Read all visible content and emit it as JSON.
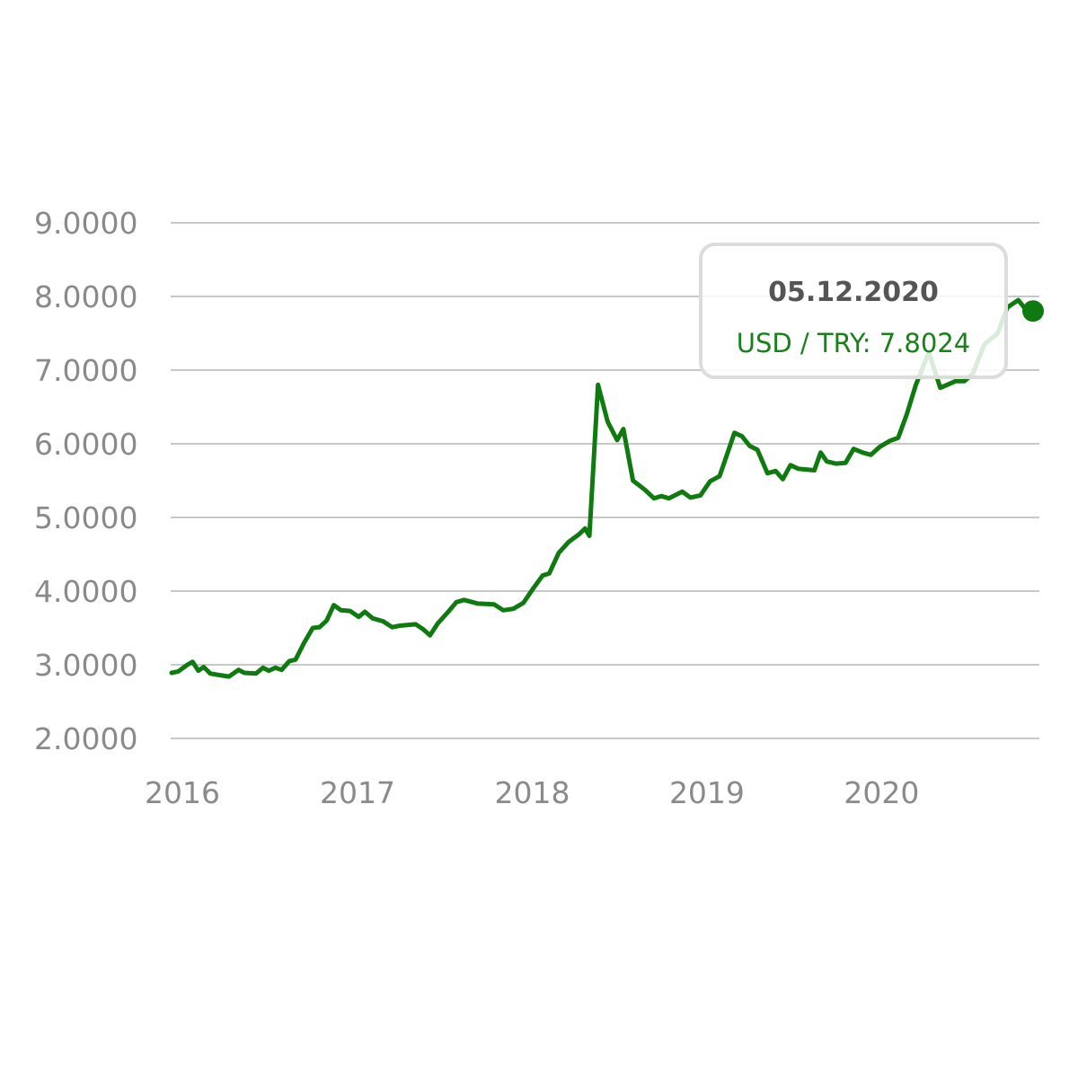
{
  "chart_data": {
    "type": "line",
    "title": "",
    "xlabel": "",
    "ylabel": "",
    "ylim": [
      2.0,
      9.0
    ],
    "xlim": [
      "2016-01-01",
      "2020-12-31"
    ],
    "yticks": [
      "2.0000",
      "3.0000",
      "4.0000",
      "5.0000",
      "6.0000",
      "7.0000",
      "8.0000",
      "9.0000"
    ],
    "xticks": [
      {
        "date": "2016-01-01",
        "label": "2016"
      },
      {
        "date": "2017-01-01",
        "label": "2017"
      },
      {
        "date": "2018-01-01",
        "label": "2018"
      },
      {
        "date": "2019-01-01",
        "label": "2019"
      },
      {
        "date": "2020-01-01",
        "label": "2020"
      }
    ],
    "grid": true,
    "color": "#0f7a0f",
    "series": [
      {
        "name": "USD / TRY",
        "points": [
          [
            "2016-01-01",
            2.89
          ],
          [
            "2016-01-15",
            2.91
          ],
          [
            "2016-02-03",
            3.0
          ],
          [
            "2016-02-14",
            3.04
          ],
          [
            "2016-02-26",
            2.92
          ],
          [
            "2016-03-08",
            2.97
          ],
          [
            "2016-03-22",
            2.88
          ],
          [
            "2016-04-10",
            2.86
          ],
          [
            "2016-04-30",
            2.84
          ],
          [
            "2016-05-20",
            2.93
          ],
          [
            "2016-06-01",
            2.89
          ],
          [
            "2016-06-25",
            2.88
          ],
          [
            "2016-07-10",
            2.96
          ],
          [
            "2016-07-22",
            2.92
          ],
          [
            "2016-08-05",
            2.96
          ],
          [
            "2016-08-18",
            2.93
          ],
          [
            "2016-09-03",
            3.05
          ],
          [
            "2016-09-16",
            3.07
          ],
          [
            "2016-10-04",
            3.3
          ],
          [
            "2016-10-22",
            3.5
          ],
          [
            "2016-11-05",
            3.51
          ],
          [
            "2016-11-20",
            3.6
          ],
          [
            "2016-12-05",
            3.81
          ],
          [
            "2016-12-20",
            3.74
          ],
          [
            "2017-01-08",
            3.73
          ],
          [
            "2017-01-26",
            3.65
          ],
          [
            "2017-02-08",
            3.72
          ],
          [
            "2017-02-24",
            3.63
          ],
          [
            "2017-03-18",
            3.59
          ],
          [
            "2017-04-06",
            3.51
          ],
          [
            "2017-04-22",
            3.53
          ],
          [
            "2017-05-25",
            3.55
          ],
          [
            "2017-06-10",
            3.48
          ],
          [
            "2017-06-24",
            3.4
          ],
          [
            "2017-07-10",
            3.56
          ],
          [
            "2017-08-01",
            3.72
          ],
          [
            "2017-08-18",
            3.85
          ],
          [
            "2017-09-03",
            3.88
          ],
          [
            "2017-10-02",
            3.83
          ],
          [
            "2017-11-05",
            3.82
          ],
          [
            "2017-11-24",
            3.74
          ],
          [
            "2017-12-15",
            3.76
          ],
          [
            "2018-01-05",
            3.84
          ],
          [
            "2018-01-26",
            4.04
          ],
          [
            "2018-02-14",
            4.21
          ],
          [
            "2018-02-28",
            4.24
          ],
          [
            "2018-03-20",
            4.52
          ],
          [
            "2018-04-10",
            4.67
          ],
          [
            "2018-05-01",
            4.77
          ],
          [
            "2018-05-14",
            4.85
          ],
          [
            "2018-05-23",
            4.75
          ],
          [
            "2018-06-10",
            6.8
          ],
          [
            "2018-06-30",
            6.3
          ],
          [
            "2018-07-20",
            6.05
          ],
          [
            "2018-08-02",
            6.2
          ],
          [
            "2018-08-22",
            5.5
          ],
          [
            "2018-09-15",
            5.38
          ],
          [
            "2018-10-05",
            5.26
          ],
          [
            "2018-10-20",
            5.29
          ],
          [
            "2018-11-05",
            5.26
          ],
          [
            "2018-12-03",
            5.35
          ],
          [
            "2018-12-20",
            5.27
          ],
          [
            "2019-01-10",
            5.3
          ],
          [
            "2019-01-30",
            5.49
          ],
          [
            "2019-02-19",
            5.56
          ],
          [
            "2019-03-22",
            6.15
          ],
          [
            "2019-04-07",
            6.1
          ],
          [
            "2019-04-23",
            5.97
          ],
          [
            "2019-05-09",
            5.92
          ],
          [
            "2019-05-30",
            5.6
          ],
          [
            "2019-06-16",
            5.63
          ],
          [
            "2019-07-01",
            5.52
          ],
          [
            "2019-07-17",
            5.71
          ],
          [
            "2019-08-03",
            5.66
          ],
          [
            "2019-09-05",
            5.64
          ],
          [
            "2019-09-18",
            5.88
          ],
          [
            "2019-10-01",
            5.76
          ],
          [
            "2019-10-20",
            5.73
          ],
          [
            "2019-11-09",
            5.74
          ],
          [
            "2019-11-26",
            5.93
          ],
          [
            "2019-12-15",
            5.88
          ],
          [
            "2020-01-01",
            5.85
          ],
          [
            "2020-01-20",
            5.96
          ],
          [
            "2020-02-10",
            6.04
          ],
          [
            "2020-02-27",
            6.08
          ],
          [
            "2020-03-16",
            6.4
          ],
          [
            "2020-04-04",
            6.8
          ],
          [
            "2020-05-01",
            7.24
          ],
          [
            "2020-05-25",
            6.76
          ],
          [
            "2020-06-26",
            6.85
          ],
          [
            "2020-07-14",
            6.85
          ],
          [
            "2020-08-01",
            6.95
          ],
          [
            "2020-08-25",
            7.35
          ],
          [
            "2020-09-22",
            7.5
          ],
          [
            "2020-10-12",
            7.85
          ],
          [
            "2020-11-04",
            7.95
          ],
          [
            "2020-11-25",
            7.78
          ],
          [
            "2020-12-05",
            7.8024
          ]
        ]
      }
    ],
    "highlight": {
      "date": "2020-12-05",
      "value": 7.8024
    }
  },
  "tooltip": {
    "date": "05.12.2020",
    "value_text": "USD / TRY: 7.8024"
  }
}
